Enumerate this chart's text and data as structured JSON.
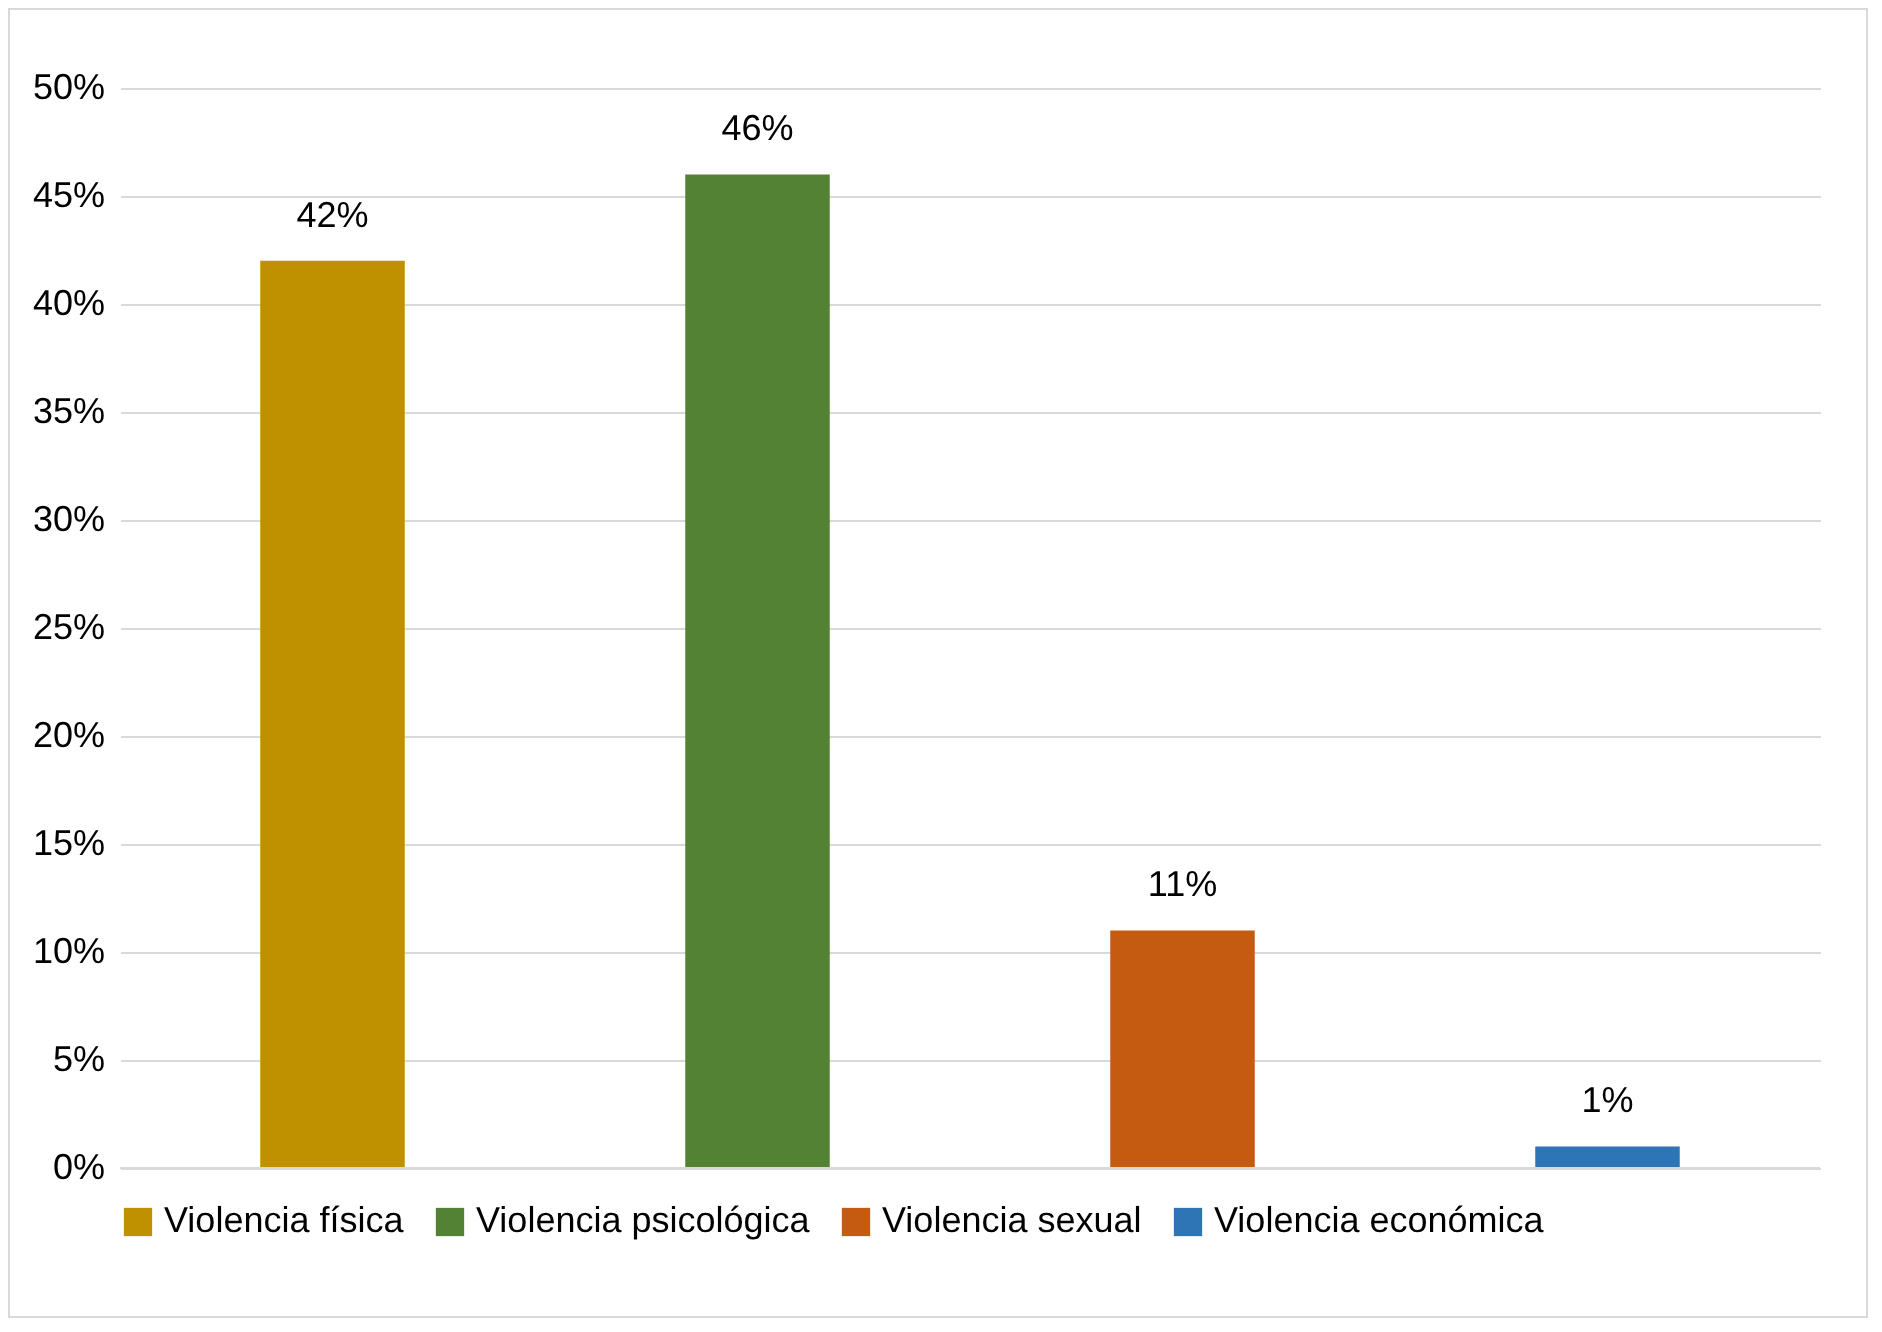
{
  "chart_data": {
    "type": "bar",
    "categories": [
      null
    ],
    "series": [
      {
        "name": "Violencia física",
        "color": "#bf9000",
        "values": [
          42
        ],
        "value_labels": [
          "42%"
        ]
      },
      {
        "name": "Violencia psicológica",
        "color": "#548235",
        "values": [
          46
        ],
        "value_labels": [
          "46%"
        ]
      },
      {
        "name": "Violencia sexual",
        "color": "#c55a11",
        "values": [
          11
        ],
        "value_labels": [
          "11%"
        ]
      },
      {
        "name": "Violencia económica",
        "color": "#2e75b6",
        "values": [
          1
        ],
        "value_labels": [
          "1%"
        ]
      }
    ],
    "ylim": [
      0,
      50
    ],
    "yticks": [
      {
        "value": 0,
        "label": "0%"
      },
      {
        "value": 5,
        "label": "5%"
      },
      {
        "value": 10,
        "label": "10%"
      },
      {
        "value": 15,
        "label": "15%"
      },
      {
        "value": 20,
        "label": "20%"
      },
      {
        "value": 25,
        "label": "25%"
      },
      {
        "value": 30,
        "label": "30%"
      },
      {
        "value": 35,
        "label": "35%"
      },
      {
        "value": 40,
        "label": "40%"
      },
      {
        "value": 45,
        "label": "45%"
      },
      {
        "value": 50,
        "label": "50%"
      }
    ],
    "grid": "y",
    "legend": "bottom"
  }
}
